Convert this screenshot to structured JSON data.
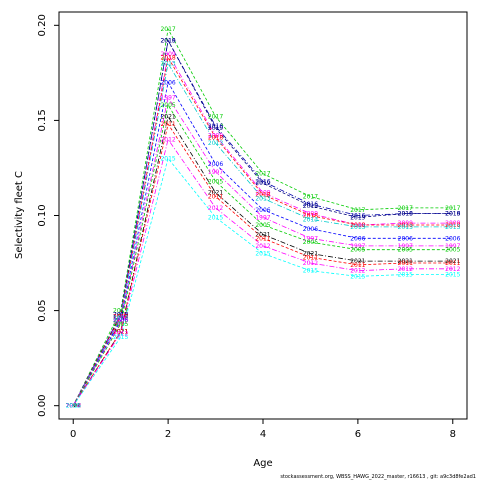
{
  "chart_data": {
    "type": "line",
    "title": "",
    "xlabel": "Age",
    "ylabel": "Selectivity fleet C",
    "xlim": [
      -0.3,
      8.3
    ],
    "ylim": [
      -0.007,
      0.207
    ],
    "x_ticks": [
      "0",
      "2",
      "4",
      "6",
      "8"
    ],
    "y_ticks": [
      "0.00",
      "0.05",
      "0.10",
      "0.15",
      "0.20"
    ],
    "grid": false,
    "legend": "none",
    "x": [
      0,
      1,
      2,
      3,
      4,
      5,
      6,
      7,
      8
    ],
    "series": [
      {
        "label": "2017",
        "color": "#00cc00",
        "values": [
          0,
          0.05,
          0.198,
          0.152,
          0.122,
          0.11,
          0.103,
          0.104,
          0.104
        ]
      },
      {
        "label": "2016",
        "color": "#0000aa",
        "values": [
          0,
          0.048,
          0.192,
          0.147,
          0.118,
          0.106,
          0.1,
          0.101,
          0.101
        ]
      },
      {
        "label": "2019",
        "color": "#000080",
        "values": [
          0,
          0.048,
          0.192,
          0.146,
          0.117,
          0.105,
          0.099,
          0.101,
          0.101
        ]
      },
      {
        "label": "2009",
        "color": "#ff00ff",
        "values": [
          0,
          0.047,
          0.185,
          0.142,
          0.112,
          0.101,
          0.095,
          0.096,
          0.096
        ]
      },
      {
        "label": "2018",
        "color": "#ff0000",
        "values": [
          0,
          0.047,
          0.183,
          0.141,
          0.111,
          0.1,
          0.095,
          0.095,
          0.095
        ]
      },
      {
        "label": "2013",
        "color": "#00cccc",
        "values": [
          0,
          0.046,
          0.18,
          0.138,
          0.109,
          0.098,
          0.094,
          0.094,
          0.094
        ]
      },
      {
        "label": "2006",
        "color": "#0000ff",
        "values": [
          0,
          0.045,
          0.17,
          0.127,
          0.103,
          0.093,
          0.088,
          0.088,
          0.088
        ]
      },
      {
        "label": "1997",
        "color": "#ff00ff",
        "values": [
          0,
          0.044,
          0.162,
          0.123,
          0.099,
          0.088,
          0.084,
          0.084,
          0.084
        ]
      },
      {
        "label": "2005",
        "color": "#00cc00",
        "values": [
          0,
          0.043,
          0.158,
          0.118,
          0.095,
          0.086,
          0.082,
          0.082,
          0.082
        ]
      },
      {
        "label": "2021",
        "color": "#000000",
        "values": [
          0,
          0.039,
          0.152,
          0.112,
          0.09,
          0.08,
          0.076,
          0.076,
          0.076
        ]
      },
      {
        "label": "2011",
        "color": "#ff0000",
        "values": [
          0,
          0.039,
          0.148,
          0.11,
          0.088,
          0.078,
          0.074,
          0.075,
          0.075
        ]
      },
      {
        "label": "2012",
        "color": "#ff00ff",
        "values": [
          0,
          0.038,
          0.14,
          0.104,
          0.084,
          0.075,
          0.071,
          0.072,
          0.072
        ]
      },
      {
        "label": "2015",
        "color": "#00ffff",
        "values": [
          0,
          0.036,
          0.13,
          0.099,
          0.08,
          0.071,
          0.068,
          0.069,
          0.069
        ]
      }
    ]
  },
  "footer": {
    "text": "stockassessment.org, WBSS_HAWG_2022_master, r16613 , git: a9c3d8fe2ad1"
  }
}
